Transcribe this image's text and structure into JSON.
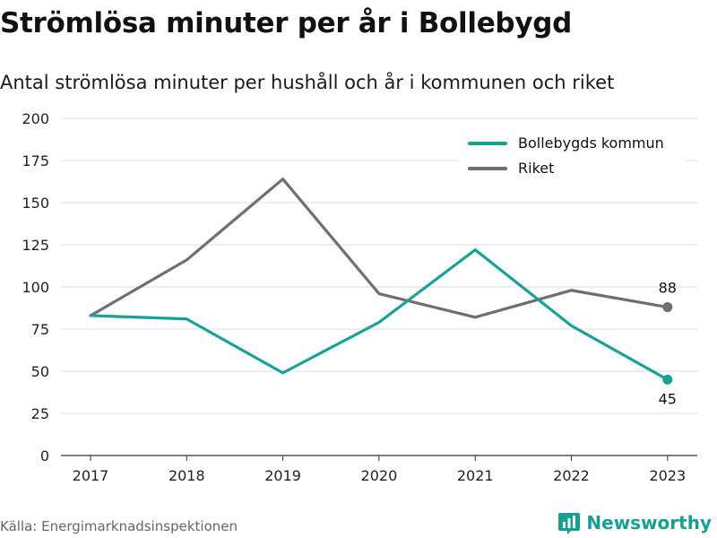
{
  "title": "Strömlösa minuter per år i Bollebygd",
  "subtitle": "Antal strömlösa minuter per hushåll och år i kommunen och riket",
  "source": "Källa: Energimarknadsinspektionen",
  "brand": {
    "name": "Newsworthy",
    "icon": "bar-chart-logo-icon",
    "color": "#199f92"
  },
  "chart_data": {
    "type": "line",
    "x": [
      "2017",
      "2018",
      "2019",
      "2020",
      "2021",
      "2022",
      "2023"
    ],
    "ylim": [
      0,
      200
    ],
    "yticks": [
      0,
      25,
      50,
      75,
      100,
      125,
      150,
      175,
      200
    ],
    "grid": true,
    "legend_position": "top-right",
    "series": [
      {
        "name": "Bollebygds kommun",
        "color": "#19a197",
        "values": [
          83,
          81,
          49,
          79,
          122,
          77,
          45
        ],
        "end_label": "45"
      },
      {
        "name": "Riket",
        "color": "#6e6e73",
        "values": [
          83,
          116,
          164,
          96,
          82,
          98,
          88
        ],
        "end_label": "88"
      }
    ]
  }
}
